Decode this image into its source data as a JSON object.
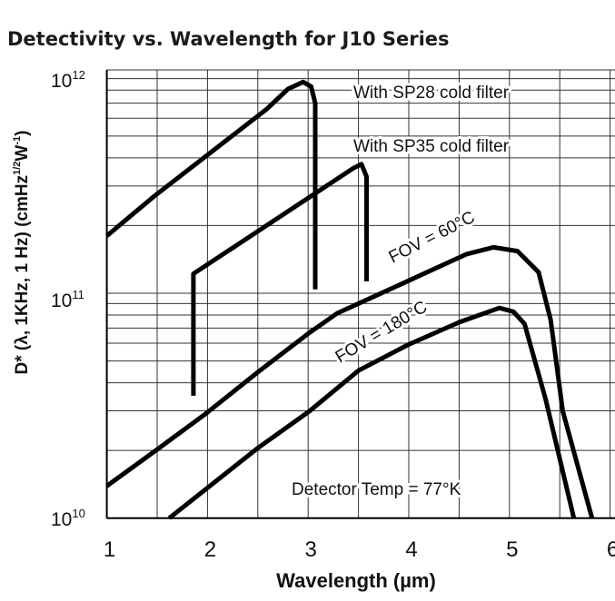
{
  "chart_data": {
    "type": "line",
    "title": "Detectivity vs. Wavelength for J10 Series",
    "xlabel": "Wavelength (µm)",
    "ylabel": "D* (λ, 1KHz, 1 Hz) (cmHz1/2W-1)",
    "ylabel_parts": {
      "main": "D* (λ, 1KHz, 1 Hz) (cmHz",
      "sup1": "1/2",
      "mid": "W",
      "sup2": "-1",
      "end": ")"
    },
    "xlim": [
      1,
      6
    ],
    "ylim": [
      10000000000.0,
      1000000000000.0
    ],
    "yscale": "log",
    "grid": true,
    "x_ticks": [
      "1",
      "2",
      "3",
      "4",
      "5",
      "6"
    ],
    "y_ticks": [
      {
        "base": "10",
        "exp": "10",
        "value": 10000000000.0
      },
      {
        "base": "10",
        "exp": "11",
        "value": 100000000000.0
      },
      {
        "base": "10",
        "exp": "12",
        "value": 1000000000000.0
      }
    ],
    "series": [
      {
        "name": "With SP28 cold filter",
        "points": [
          [
            1,
            180000000000.0
          ],
          [
            1.47,
            270000000000.0
          ],
          [
            2.59,
            660000000000.0
          ],
          [
            2.8,
            810000000000.0
          ],
          [
            2.95,
            870000000000.0
          ],
          [
            3.03,
            830000000000.0
          ],
          [
            3.07,
            700000000000.0
          ],
          [
            3.07,
            104000000000.0
          ]
        ]
      },
      {
        "name": "With SP35 cold filter",
        "points": [
          [
            1.86,
            35000000000.0
          ],
          [
            1.86,
            122000000000.0
          ],
          [
            3.45,
            360000000000.0
          ],
          [
            3.53,
            375000000000.0
          ],
          [
            3.58,
            330000000000.0
          ],
          [
            3.58,
            113000000000.0
          ]
        ]
      },
      {
        "name": "FOV = 60°C",
        "points": [
          [
            1,
            13900000000.0
          ],
          [
            1.48,
            19900000000.0
          ],
          [
            1.99,
            29300000000.0
          ],
          [
            2.5,
            44600000000.0
          ],
          [
            3.01,
            66600000000.0
          ],
          [
            3.29,
            81500000000.0
          ],
          [
            3.91,
            109000000000.0
          ],
          [
            4.57,
            149000000000.0
          ],
          [
            4.84,
            160000000000.0
          ],
          [
            5.08,
            154000000000.0
          ],
          [
            5.29,
            124000000000.0
          ],
          [
            5.41,
            76000000000.0
          ],
          [
            5.53,
            29900000000.0
          ],
          [
            5.82,
            10000000000.0
          ]
        ]
      },
      {
        "name": "FOV = 180°C",
        "points": [
          [
            1.62,
            10000000000.0
          ],
          [
            2.5,
            20500000000.0
          ],
          [
            3.01,
            29800000000.0
          ],
          [
            3.5,
            45300000000.0
          ],
          [
            3.99,
            58900000000.0
          ],
          [
            4.5,
            74300000000.0
          ],
          [
            4.9,
            86000000000.0
          ],
          [
            5.04,
            82800000000.0
          ],
          [
            5.15,
            73100000000.0
          ],
          [
            5.36,
            33700000000.0
          ],
          [
            5.64,
            10000000000.0
          ]
        ]
      }
    ],
    "annotations": {
      "detector_temp": "Detector Temp = 77°K"
    }
  }
}
